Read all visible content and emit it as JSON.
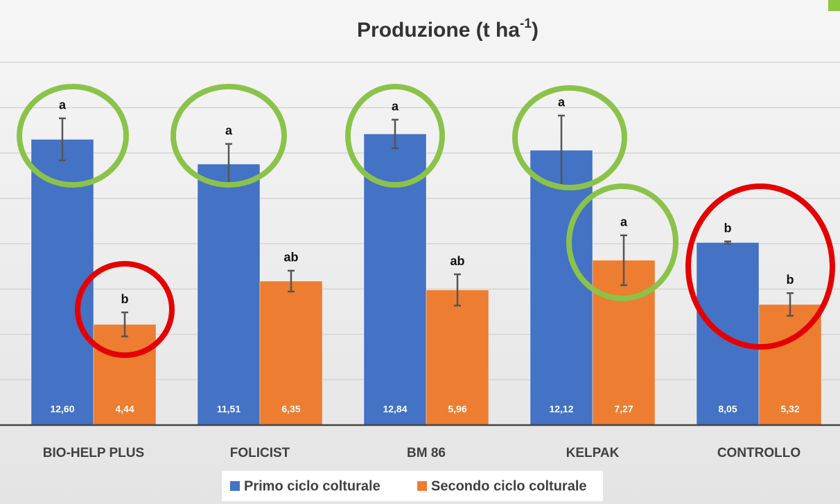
{
  "chart_data": {
    "type": "bar",
    "title": {
      "text": "Produzione (t ha",
      "superscript": "-1",
      "suffix": ")"
    },
    "categories": [
      "BIO-HELP PLUS",
      "FOLICIST",
      "BM 86",
      "KELPAK",
      "CONTROLLO"
    ],
    "series": [
      {
        "name": "Primo ciclo colturale",
        "color": "#4472c4",
        "values": [
          12.6,
          11.51,
          12.84,
          12.12,
          8.05
        ],
        "value_labels": [
          "12,60",
          "11,51",
          "12,84",
          "12,12",
          "8,05"
        ],
        "errors": [
          0.93,
          0.89,
          0.63,
          1.53,
          0.05
        ],
        "letters": [
          "a",
          "a",
          "a",
          "a",
          "b"
        ]
      },
      {
        "name": "Secondo ciclo colturale",
        "color": "#ed7d31",
        "values": [
          4.44,
          6.35,
          5.96,
          7.27,
          5.32
        ],
        "value_labels": [
          "4,44",
          "6,35",
          "5,96",
          "7,27",
          "5,32"
        ],
        "errors": [
          0.53,
          0.46,
          0.69,
          1.1,
          0.5
        ],
        "letters": [
          "b",
          "ab",
          "ab",
          "a",
          "b"
        ]
      }
    ],
    "ylim": [
      0,
      16
    ],
    "yticks": [
      2,
      4,
      6,
      8,
      10,
      12,
      14,
      16
    ],
    "grid": true,
    "legend": "bottom"
  }
}
